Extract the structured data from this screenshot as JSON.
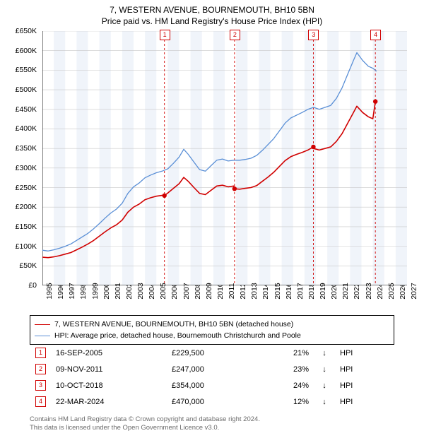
{
  "title": {
    "line1": "7, WESTERN AVENUE, BOURNEMOUTH, BH10 5BN",
    "line2": "Price paid vs. HM Land Registry's House Price Index (HPI)",
    "fontsize": 12
  },
  "chart": {
    "type": "line",
    "background_color": "#ffffff",
    "grid_color": "#c8c8c8",
    "text_color": "#000000",
    "axis_color": "#000000",
    "label_fontsize": 10.5,
    "xlim": [
      1995,
      2027
    ],
    "ylim": [
      0,
      650000
    ],
    "ytick_step": 50000,
    "ytick_labels": [
      "£0",
      "£50K",
      "£100K",
      "£150K",
      "£200K",
      "£250K",
      "£300K",
      "£350K",
      "£400K",
      "£450K",
      "£500K",
      "£550K",
      "£600K",
      "£650K"
    ],
    "xtick_step": 1,
    "xtick_labels": [
      "1995",
      "1996",
      "1997",
      "1998",
      "1999",
      "2000",
      "2001",
      "2002",
      "2003",
      "2004",
      "2005",
      "2006",
      "2007",
      "2008",
      "2009",
      "2010",
      "2011",
      "2012",
      "2013",
      "2014",
      "2015",
      "2016",
      "2017",
      "2018",
      "2019",
      "2020",
      "2021",
      "2022",
      "2023",
      "2024",
      "2025",
      "2026",
      "2027"
    ],
    "shaded_bands": {
      "color": "#f0f4fa",
      "every_other_year_starting": 1996
    },
    "series": [
      {
        "name": "hpi",
        "label": "HPI: Average price, detached house, Bournemouth Christchurch and Poole",
        "color": "#5a8fd6",
        "line_width": 1.3,
        "points": [
          [
            1995.0,
            90000
          ],
          [
            1995.5,
            88000
          ],
          [
            1996.0,
            91000
          ],
          [
            1996.5,
            95000
          ],
          [
            1997.0,
            100000
          ],
          [
            1997.5,
            106000
          ],
          [
            1998.0,
            115000
          ],
          [
            1998.5,
            124000
          ],
          [
            1999.0,
            133000
          ],
          [
            1999.5,
            145000
          ],
          [
            2000.0,
            158000
          ],
          [
            2000.5,
            172000
          ],
          [
            2001.0,
            185000
          ],
          [
            2001.5,
            195000
          ],
          [
            2002.0,
            210000
          ],
          [
            2002.5,
            235000
          ],
          [
            2003.0,
            252000
          ],
          [
            2003.5,
            262000
          ],
          [
            2004.0,
            275000
          ],
          [
            2004.5,
            282000
          ],
          [
            2005.0,
            288000
          ],
          [
            2005.5,
            292000
          ],
          [
            2006.0,
            298000
          ],
          [
            2006.5,
            312000
          ],
          [
            2007.0,
            328000
          ],
          [
            2007.4,
            348000
          ],
          [
            2007.8,
            335000
          ],
          [
            2008.3,
            315000
          ],
          [
            2008.8,
            296000
          ],
          [
            2009.3,
            292000
          ],
          [
            2009.8,
            306000
          ],
          [
            2010.3,
            320000
          ],
          [
            2010.8,
            323000
          ],
          [
            2011.3,
            318000
          ],
          [
            2011.8,
            320000
          ],
          [
            2012.3,
            320000
          ],
          [
            2012.8,
            322000
          ],
          [
            2013.3,
            325000
          ],
          [
            2013.8,
            332000
          ],
          [
            2014.3,
            345000
          ],
          [
            2014.8,
            360000
          ],
          [
            2015.3,
            375000
          ],
          [
            2015.8,
            395000
          ],
          [
            2016.3,
            415000
          ],
          [
            2016.8,
            428000
          ],
          [
            2017.3,
            435000
          ],
          [
            2017.8,
            442000
          ],
          [
            2018.3,
            450000
          ],
          [
            2018.8,
            455000
          ],
          [
            2019.3,
            450000
          ],
          [
            2019.8,
            455000
          ],
          [
            2020.3,
            460000
          ],
          [
            2020.8,
            478000
          ],
          [
            2021.3,
            505000
          ],
          [
            2021.8,
            540000
          ],
          [
            2022.3,
            575000
          ],
          [
            2022.6,
            595000
          ],
          [
            2023.1,
            575000
          ],
          [
            2023.6,
            560000
          ],
          [
            2024.0,
            555000
          ],
          [
            2024.3,
            548000
          ]
        ]
      },
      {
        "name": "paid",
        "label": "7, WESTERN AVENUE, BOURNEMOUTH, BH10 5BN (detached house)",
        "color": "#d00000",
        "line_width": 1.6,
        "points": [
          [
            1995.0,
            72000
          ],
          [
            1995.5,
            71000
          ],
          [
            1996.0,
            73000
          ],
          [
            1996.5,
            76000
          ],
          [
            1997.0,
            80000
          ],
          [
            1997.5,
            84000
          ],
          [
            1998.0,
            91000
          ],
          [
            1998.5,
            98000
          ],
          [
            1999.0,
            106000
          ],
          [
            1999.5,
            115000
          ],
          [
            2000.0,
            126000
          ],
          [
            2000.5,
            137000
          ],
          [
            2001.0,
            147000
          ],
          [
            2001.5,
            155000
          ],
          [
            2002.0,
            167000
          ],
          [
            2002.5,
            187000
          ],
          [
            2003.0,
            200000
          ],
          [
            2003.5,
            208000
          ],
          [
            2004.0,
            219000
          ],
          [
            2004.5,
            224000
          ],
          [
            2005.0,
            228000
          ],
          [
            2005.5,
            230000
          ],
          [
            2005.71,
            229500
          ],
          [
            2006.0,
            236000
          ],
          [
            2006.5,
            248000
          ],
          [
            2007.0,
            260000
          ],
          [
            2007.4,
            276000
          ],
          [
            2007.8,
            266000
          ],
          [
            2008.3,
            250000
          ],
          [
            2008.8,
            235000
          ],
          [
            2009.3,
            232000
          ],
          [
            2009.8,
            243000
          ],
          [
            2010.3,
            254000
          ],
          [
            2010.8,
            256000
          ],
          [
            2011.3,
            252000
          ],
          [
            2011.8,
            254000
          ],
          [
            2011.86,
            247000
          ],
          [
            2012.3,
            246000
          ],
          [
            2012.8,
            248000
          ],
          [
            2013.3,
            250000
          ],
          [
            2013.8,
            255000
          ],
          [
            2014.3,
            266000
          ],
          [
            2014.8,
            277000
          ],
          [
            2015.3,
            289000
          ],
          [
            2015.8,
            304000
          ],
          [
            2016.3,
            319000
          ],
          [
            2016.8,
            329000
          ],
          [
            2017.3,
            335000
          ],
          [
            2017.8,
            340000
          ],
          [
            2018.3,
            346000
          ],
          [
            2018.78,
            354000
          ],
          [
            2018.8,
            350000
          ],
          [
            2019.3,
            346000
          ],
          [
            2019.8,
            350000
          ],
          [
            2020.3,
            354000
          ],
          [
            2020.8,
            368000
          ],
          [
            2021.3,
            388000
          ],
          [
            2021.8,
            415000
          ],
          [
            2022.3,
            442000
          ],
          [
            2022.6,
            458000
          ],
          [
            2023.1,
            442000
          ],
          [
            2023.6,
            431000
          ],
          [
            2024.0,
            426000
          ],
          [
            2024.22,
            470000
          ]
        ]
      }
    ],
    "sale_markers": [
      {
        "n": "1",
        "x": 2005.71,
        "y": 229500,
        "date": "16-SEP-2005",
        "price": "£229,500",
        "pct": "21%",
        "dir": "↓",
        "vs": "HPI"
      },
      {
        "n": "2",
        "x": 2011.86,
        "y": 247000,
        "date": "09-NOV-2011",
        "price": "£247,000",
        "pct": "23%",
        "dir": "↓",
        "vs": "HPI"
      },
      {
        "n": "3",
        "x": 2018.78,
        "y": 354000,
        "date": "10-OCT-2018",
        "price": "£354,000",
        "pct": "24%",
        "dir": "↓",
        "vs": "HPI"
      },
      {
        "n": "4",
        "x": 2024.22,
        "y": 470000,
        "date": "22-MAR-2024",
        "price": "£470,000",
        "pct": "12%",
        "dir": "↓",
        "vs": "HPI"
      }
    ],
    "sale_marker_line_color": "#d00000",
    "sale_marker_line_dash": "3 3",
    "sale_marker_dot_color": "#d00000"
  },
  "footer": {
    "line1": "Contains HM Land Registry data © Crown copyright and database right 2024.",
    "line2": "This data is licensed under the Open Government Licence v3.0.",
    "color": "#6b6b6b"
  }
}
